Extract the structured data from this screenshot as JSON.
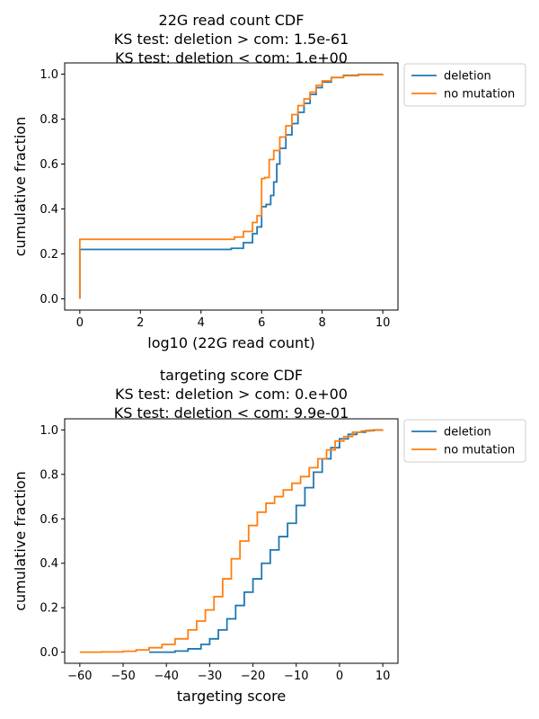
{
  "chart_data": [
    {
      "type": "line",
      "title_lines": [
        "22G read count CDF",
        "KS test: deletion > com: 1.5e-61",
        "KS test: deletion < com: 1.e+00"
      ],
      "xlabel": "log10 (22G read count)",
      "ylabel": "cumulative fraction",
      "xlim": [
        -0.5,
        10.5
      ],
      "ylim": [
        -0.05,
        1.05
      ],
      "xticks": [
        0,
        2,
        4,
        6,
        8,
        10
      ],
      "xtick_labels": [
        "0",
        "2",
        "4",
        "6",
        "8",
        "10"
      ],
      "yticks": [
        0.0,
        0.2,
        0.4,
        0.6,
        0.8,
        1.0
      ],
      "ytick_labels": [
        "0.0",
        "0.2",
        "0.4",
        "0.6",
        "0.8",
        "1.0"
      ],
      "grid": false,
      "legend": "outside-upper-right",
      "step": true,
      "series": [
        {
          "name": "deletion",
          "color": "#1f77b4",
          "x": [
            0,
            0,
            4.5,
            5.0,
            5.4,
            5.7,
            5.85,
            6.0,
            6.0,
            6.15,
            6.3,
            6.4,
            6.5,
            6.6,
            6.8,
            7.0,
            7.2,
            7.4,
            7.6,
            7.8,
            8.0,
            8.3,
            8.7,
            9.2,
            10.0
          ],
          "y": [
            0.0,
            0.22,
            0.22,
            0.225,
            0.25,
            0.29,
            0.32,
            0.33,
            0.41,
            0.42,
            0.46,
            0.52,
            0.6,
            0.67,
            0.73,
            0.78,
            0.83,
            0.87,
            0.91,
            0.94,
            0.965,
            0.985,
            0.995,
            0.999,
            1.0
          ]
        },
        {
          "name": "no mutation",
          "color": "#ff7f0e",
          "x": [
            0,
            0,
            4.6,
            5.1,
            5.4,
            5.7,
            5.85,
            6.0,
            6.0,
            6.1,
            6.25,
            6.4,
            6.6,
            6.8,
            7.0,
            7.2,
            7.4,
            7.6,
            7.8,
            8.0,
            8.3,
            8.7,
            9.2,
            10.0
          ],
          "y": [
            0.0,
            0.265,
            0.265,
            0.275,
            0.3,
            0.34,
            0.37,
            0.38,
            0.535,
            0.54,
            0.62,
            0.66,
            0.72,
            0.77,
            0.82,
            0.86,
            0.89,
            0.92,
            0.95,
            0.97,
            0.985,
            0.993,
            0.998,
            1.0
          ]
        }
      ]
    },
    {
      "type": "line",
      "title_lines": [
        "targeting score CDF",
        "KS test: deletion > com: 0.e+00",
        "KS test: deletion < com: 9.9e-01"
      ],
      "xlabel": "targeting score",
      "ylabel": "cumulative fraction",
      "xlim": [
        -63.5,
        13.5
      ],
      "ylim": [
        -0.05,
        1.05
      ],
      "xticks": [
        -60,
        -50,
        -40,
        -30,
        -20,
        -10,
        0,
        10
      ],
      "xtick_labels": [
        "−60",
        "−50",
        "−40",
        "−30",
        "−20",
        "−10",
        "0",
        "10"
      ],
      "yticks": [
        0.0,
        0.2,
        0.4,
        0.6,
        0.8,
        1.0
      ],
      "ytick_labels": [
        "0.0",
        "0.2",
        "0.4",
        "0.6",
        "0.8",
        "1.0"
      ],
      "grid": false,
      "legend": "outside-upper-right",
      "step": true,
      "series": [
        {
          "name": "deletion",
          "color": "#1f77b4",
          "x": [
            -44,
            -38,
            -35,
            -32,
            -30,
            -28,
            -26,
            -24,
            -22,
            -20,
            -18,
            -16,
            -14,
            -12,
            -10,
            -8,
            -6,
            -4,
            -2,
            0,
            2,
            4,
            6,
            8,
            10
          ],
          "y": [
            0.0,
            0.005,
            0.015,
            0.035,
            0.06,
            0.1,
            0.15,
            0.21,
            0.27,
            0.33,
            0.4,
            0.46,
            0.52,
            0.58,
            0.66,
            0.74,
            0.81,
            0.87,
            0.92,
            0.96,
            0.98,
            0.99,
            0.997,
            1.0,
            1.0
          ]
        },
        {
          "name": "no mutation",
          "color": "#ff7f0e",
          "x": [
            -60,
            -55,
            -50,
            -47,
            -44,
            -41,
            -38,
            -35,
            -33,
            -31,
            -29,
            -27,
            -25,
            -23,
            -21,
            -19,
            -17,
            -15,
            -13,
            -11,
            -9,
            -7,
            -5,
            -3,
            -1,
            1,
            3,
            5,
            7,
            10
          ],
          "y": [
            0.0,
            0.001,
            0.004,
            0.01,
            0.02,
            0.035,
            0.06,
            0.1,
            0.14,
            0.19,
            0.25,
            0.33,
            0.42,
            0.5,
            0.57,
            0.63,
            0.67,
            0.7,
            0.73,
            0.76,
            0.79,
            0.83,
            0.87,
            0.91,
            0.95,
            0.97,
            0.99,
            0.995,
            0.999,
            1.0
          ]
        }
      ]
    }
  ]
}
